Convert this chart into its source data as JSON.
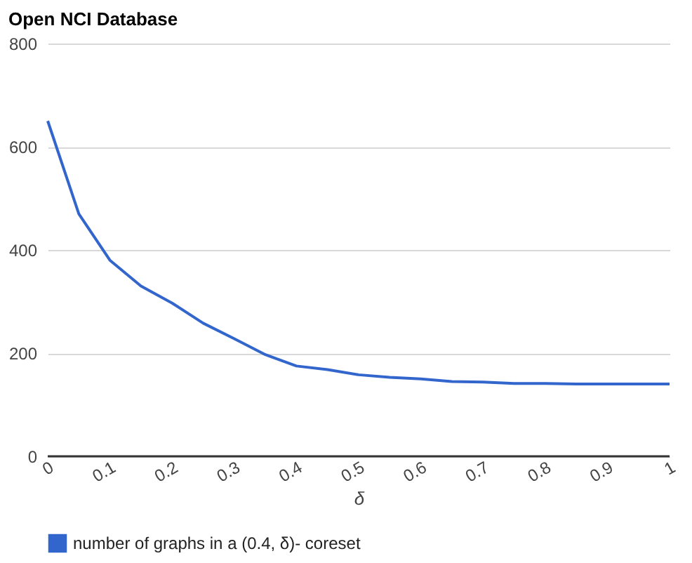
{
  "chart_data": {
    "type": "line",
    "title": "Open NCI Database",
    "xlabel": "δ",
    "x": [
      0,
      0.05,
      0.1,
      0.15,
      0.2,
      0.25,
      0.3,
      0.35,
      0.4,
      0.45,
      0.5,
      0.55,
      0.6,
      0.65,
      0.7,
      0.75,
      0.8,
      0.85,
      0.9,
      0.95,
      1
    ],
    "series": [
      {
        "name": "number of graphs in a (0.4, δ)- coreset",
        "color": "#3366cc",
        "values": [
          650,
          470,
          380,
          330,
          297,
          258,
          228,
          197,
          175,
          168,
          158,
          153,
          150,
          145,
          144,
          141,
          141,
          140,
          140,
          140,
          140
        ]
      }
    ],
    "xlim": [
      0,
      1
    ],
    "xticks": [
      0,
      0.1,
      0.2,
      0.3,
      0.4,
      0.5,
      0.6,
      0.7,
      0.8,
      0.9,
      1
    ],
    "ylim": [
      0,
      800
    ],
    "yticks": [
      0,
      200,
      400,
      600,
      800
    ],
    "grid": "y",
    "legend": "bottom",
    "marker": "none",
    "line_style": "solid"
  }
}
